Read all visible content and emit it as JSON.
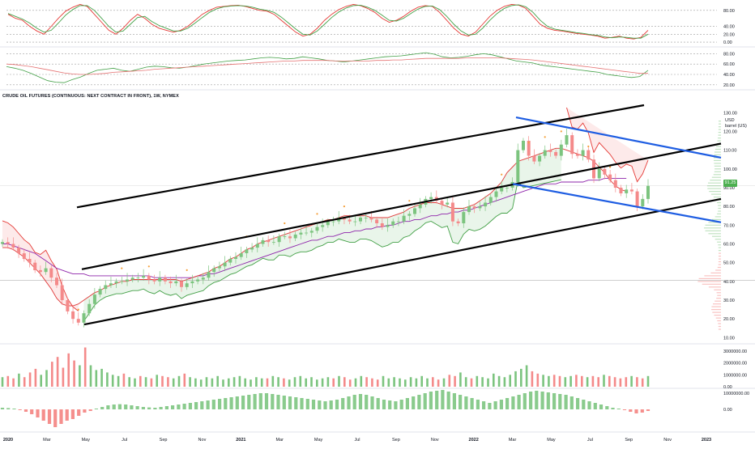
{
  "title": "CRUDE OIL FUTURES (CONTINUOUS: NEXT CONTRACT IN FRONT), 1W, NYMEX",
  "unit_line1": "USD",
  "unit_line2": "barrel (US)",
  "last_price": "91.25",
  "colors": {
    "up": "#7cc47f",
    "down": "#f48a8a",
    "channel": "#000000",
    "wedge": "#1e5de2",
    "ma_fast": "#e03a3a",
    "ma_slow": "#8e24aa",
    "supertrend_up": "#43a047",
    "supertrend_down": "#e53935",
    "dots": "#f5a03a"
  },
  "chart_data": [
    {
      "id": "stochastic",
      "type": "line",
      "ylim": [
        -10,
        100
      ],
      "y_ticks": [
        "80.00",
        "40.00",
        "20.00",
        "0.00"
      ],
      "y_tick_values": [
        80,
        40,
        20,
        0
      ],
      "series": [
        {
          "values": [
            70,
            60,
            55,
            40,
            28,
            20,
            40,
            60,
            78,
            88,
            95,
            90,
            70,
            50,
            30,
            20,
            35,
            55,
            70,
            60,
            45,
            35,
            30,
            25,
            30,
            40,
            55,
            70,
            80,
            88,
            90,
            92,
            93,
            90,
            85,
            80,
            78,
            70,
            55,
            40,
            25,
            15,
            20,
            35,
            55,
            70,
            82,
            90,
            95,
            92,
            85,
            75,
            60,
            50,
            55,
            65,
            78,
            88,
            92,
            90,
            75,
            55,
            35,
            20,
            15,
            25,
            45,
            65,
            80,
            90,
            95,
            93,
            85,
            65,
            45,
            35,
            30,
            28,
            25,
            22,
            20,
            18,
            15,
            10,
            12,
            15,
            10,
            8,
            12,
            30
          ]
        },
        {
          "values": [
            72,
            65,
            58,
            48,
            35,
            25,
            30,
            48,
            68,
            82,
            92,
            92,
            80,
            60,
            40,
            25,
            28,
            45,
            62,
            65,
            52,
            42,
            35,
            28,
            28,
            35,
            48,
            62,
            75,
            84,
            89,
            91,
            92,
            91,
            88,
            83,
            80,
            75,
            63,
            48,
            33,
            20,
            18,
            28,
            45,
            62,
            76,
            86,
            92,
            93,
            88,
            80,
            68,
            55,
            53,
            60,
            72,
            83,
            90,
            91,
            82,
            65,
            45,
            28,
            18,
            20,
            35,
            55,
            72,
            85,
            92,
            94,
            89,
            75,
            55,
            40,
            33,
            30,
            27,
            24,
            22,
            19,
            17,
            13,
            11,
            13,
            12,
            10,
            10,
            20
          ]
        }
      ]
    },
    {
      "id": "rsi",
      "type": "line",
      "ylim": [
        15,
        90
      ],
      "y_ticks": [
        "80.00",
        "60.00",
        "40.00",
        "20.00"
      ],
      "y_tick_values": [
        80,
        60,
        40,
        20
      ],
      "series": [
        {
          "values": [
            55,
            52,
            48,
            42,
            35,
            28,
            25,
            24,
            30,
            35,
            42,
            48,
            50,
            52,
            48,
            46,
            50,
            54,
            56,
            55,
            53,
            52,
            54,
            57,
            60,
            62,
            64,
            66,
            67,
            68,
            70,
            72,
            73,
            72,
            70,
            71,
            74,
            72,
            70,
            67,
            66,
            64,
            66,
            68,
            70,
            72,
            74,
            75,
            76,
            78,
            80,
            82,
            79,
            74,
            72,
            73,
            75,
            78,
            80,
            78,
            74,
            70,
            66,
            64,
            62,
            58,
            56,
            54,
            52,
            50,
            48,
            46,
            44,
            40,
            38,
            36,
            34,
            36,
            48
          ]
        },
        {
          "values": [
            60,
            59,
            57,
            55,
            52,
            49,
            46,
            43,
            41,
            40,
            40,
            41,
            42,
            44,
            45,
            46,
            47,
            48,
            50,
            51,
            52,
            53,
            54,
            55,
            56,
            57,
            58,
            59,
            60,
            61,
            62,
            63,
            64,
            65,
            66,
            66,
            67,
            67,
            67,
            67,
            66,
            66,
            66,
            66,
            66,
            67,
            67,
            68,
            68,
            69,
            70,
            71,
            71,
            71,
            71,
            71,
            72,
            72,
            72,
            72,
            72,
            71,
            70,
            69,
            68,
            66,
            64,
            62,
            60,
            58,
            56,
            54,
            52,
            50,
            48,
            46,
            44,
            42,
            42
          ]
        }
      ]
    },
    {
      "id": "price",
      "type": "candlestick",
      "ylim": [
        8,
        134
      ],
      "y_ticks": [
        "130.00",
        "120.00",
        "110.00",
        "100.00",
        "90.00",
        "80.00",
        "70.00",
        "60.00",
        "50.00",
        "40.00",
        "30.00",
        "20.00",
        "10.00"
      ],
      "y_tick_values": [
        130,
        120,
        110,
        100,
        90,
        80,
        70,
        60,
        50,
        40,
        30,
        20,
        10
      ],
      "x_labels": [
        "2020",
        "Mar",
        "May",
        "Jul",
        "Sep",
        "Nov",
        "2021",
        "Mar",
        "May",
        "Jul",
        "Sep",
        "Nov",
        "2022",
        "Mar",
        "May",
        "Jul",
        "Sep",
        "Nov",
        "2023"
      ],
      "closes": [
        61,
        60,
        58,
        55,
        52,
        50,
        46,
        45,
        47,
        42,
        38,
        30,
        24,
        20,
        18,
        23,
        28,
        33,
        36,
        38,
        39,
        40,
        40,
        41,
        42,
        42,
        43,
        41,
        40,
        42,
        40,
        39,
        40,
        37,
        39,
        40,
        41,
        42,
        45,
        47,
        48,
        50,
        52,
        53,
        55,
        57,
        58,
        60,
        62,
        61,
        61,
        64,
        64,
        63,
        65,
        66,
        66,
        67,
        69,
        70,
        72,
        72,
        74,
        73,
        72,
        72,
        74,
        74,
        73,
        71,
        69,
        70,
        72,
        72,
        75,
        76,
        79,
        81,
        84,
        85,
        83,
        81,
        82,
        72,
        71,
        77,
        80,
        79,
        80,
        82,
        85,
        88,
        90,
        90,
        93,
        110,
        115,
        107,
        104,
        107,
        110,
        109,
        107,
        113,
        118,
        108,
        107,
        110,
        105,
        95,
        100,
        97,
        94,
        90,
        87,
        89,
        88,
        80,
        84,
        91
      ],
      "ma_fast": [
        58,
        58,
        57,
        55,
        53,
        50,
        47,
        44,
        40,
        36,
        31,
        28,
        27,
        27,
        28,
        30,
        32,
        34,
        35,
        37,
        38,
        39,
        40,
        40,
        41,
        41,
        41,
        41,
        41,
        41,
        41,
        41,
        41,
        40,
        41,
        42,
        43,
        44,
        45,
        47,
        48,
        50,
        52,
        53,
        55,
        57,
        58,
        60,
        61,
        62,
        63,
        64,
        65,
        66,
        67,
        68,
        69,
        70,
        71,
        72,
        73,
        73,
        74,
        75,
        75,
        75,
        75,
        75,
        74,
        74,
        74,
        74,
        75,
        76,
        77,
        79,
        80,
        81,
        82,
        82,
        82,
        81,
        80,
        79,
        79,
        79,
        80,
        81,
        83,
        85,
        87,
        90,
        93,
        98,
        101,
        104,
        105,
        106,
        107,
        108,
        109,
        110,
        111,
        111,
        110,
        109,
        108,
        107,
        106,
        104,
        101,
        98,
        94,
        91,
        89,
        88
      ],
      "ma_slow": [
        60,
        60,
        59,
        58,
        57,
        56,
        55,
        53,
        51,
        49,
        47,
        46,
        45,
        44,
        44,
        44,
        43,
        43,
        43,
        43,
        43,
        43,
        43,
        43,
        43,
        43,
        43,
        43,
        42,
        42,
        42,
        42,
        42,
        42,
        42,
        42,
        43,
        43,
        44,
        44,
        45,
        46,
        47,
        48,
        49,
        50,
        51,
        52,
        53,
        54,
        55,
        56,
        57,
        58,
        59,
        60,
        61,
        62,
        62,
        63,
        64,
        64,
        65,
        66,
        66,
        67,
        67,
        68,
        68,
        69,
        69,
        70,
        70,
        71,
        72,
        72,
        73,
        73,
        74,
        75,
        75,
        76,
        76,
        77,
        77,
        78,
        78,
        79,
        80,
        81,
        82,
        83,
        84,
        85,
        86,
        87,
        88,
        89,
        90,
        91,
        92,
        92,
        92,
        93,
        93,
        93,
        93,
        93,
        94,
        94,
        94,
        95,
        95,
        95,
        95,
        95
      ]
    },
    {
      "id": "volume",
      "type": "bar",
      "ylim": [
        0,
        3400000
      ],
      "y_ticks": [
        "3000000.00",
        "2000000.00",
        "1000000.00",
        "0.00"
      ],
      "y_tick_values": [
        3000000,
        2000000,
        1000000,
        0
      ],
      "values": [
        800000,
        900000,
        700000,
        1100000,
        800000,
        1200000,
        1500000,
        1000000,
        1400000,
        2100000,
        2500000,
        1600000,
        2800000,
        2200000,
        1800000,
        3300000,
        1800000,
        1400000,
        1500000,
        1200000,
        1000000,
        900000,
        1100000,
        800000,
        700000,
        900000,
        800000,
        700000,
        1000000,
        900000,
        800000,
        700000,
        900000,
        1100000,
        800000,
        700000,
        600000,
        800000,
        700000,
        900000,
        600000,
        700000,
        800000,
        900000,
        700000,
        600000,
        800000,
        700000,
        700000,
        900000,
        800000,
        700000,
        600000,
        800000,
        900000,
        700000,
        800000,
        600000,
        700000,
        800000,
        700000,
        900000,
        800000,
        600000,
        700000,
        900000,
        800000,
        700000,
        600000,
        900000,
        700000,
        800000,
        700000,
        600000,
        800000,
        700000,
        900000,
        700000,
        800000,
        600000,
        700000,
        1000000,
        900000,
        1200000,
        800000,
        700000,
        900000,
        800000,
        700000,
        1100000,
        900000,
        800000,
        1000000,
        1300000,
        1500000,
        1800000,
        1300000,
        1100000,
        1000000,
        900000,
        1000000,
        900000,
        800000,
        900000,
        1000000,
        900000,
        800000,
        900000,
        800000,
        1000000,
        900000,
        800000,
        700000,
        800000,
        900000,
        800000,
        700000,
        900000
      ],
      "up": [
        1,
        0,
        0,
        1,
        0,
        0,
        0,
        1,
        1,
        0,
        0,
        0,
        0,
        0,
        1,
        0,
        1,
        1,
        1,
        1,
        1,
        1,
        0,
        1,
        1,
        0,
        1,
        0,
        1,
        0,
        0,
        1,
        1,
        0,
        1,
        1,
        1,
        1,
        1,
        1,
        1,
        1,
        1,
        1,
        1,
        1,
        1,
        1,
        0,
        1,
        1,
        0,
        1,
        1,
        1,
        1,
        1,
        1,
        1,
        1,
        0,
        1,
        0,
        0,
        1,
        1,
        0,
        0,
        0,
        1,
        1,
        1,
        1,
        1,
        1,
        1,
        1,
        1,
        0,
        0,
        1,
        0,
        0,
        1,
        1,
        0,
        1,
        1,
        1,
        1,
        1,
        1,
        1,
        1,
        1,
        1,
        0,
        0,
        1,
        1,
        0,
        0,
        1,
        1,
        0,
        0,
        1,
        0,
        0,
        1,
        0,
        0,
        0,
        0,
        1,
        0,
        0,
        1,
        1
      ]
    },
    {
      "id": "oscillator",
      "type": "bar",
      "ylim": [
        -12000000,
        12000000
      ],
      "y_ticks": [
        "10000000.00",
        "0.00"
      ],
      "y_tick_values": [
        10000000,
        0
      ],
      "values": [
        1000000,
        800000,
        500000,
        -500000,
        -1500000,
        -3000000,
        -5000000,
        -7000000,
        -9000000,
        -11000000,
        -9000000,
        -7000000,
        -6000000,
        -4000000,
        -2000000,
        -1000000,
        500000,
        1500000,
        2500000,
        3000000,
        3200000,
        3000000,
        2500000,
        2000000,
        1500000,
        1200000,
        1000000,
        1500000,
        2000000,
        2500000,
        3000000,
        3500000,
        4000000,
        4500000,
        5000000,
        5500000,
        6000000,
        6500000,
        7000000,
        7500000,
        8000000,
        8500000,
        9000000,
        9500000,
        10000000,
        10000000,
        9500000,
        9000000,
        8500000,
        8000000,
        7500000,
        7000000,
        6500000,
        6000000,
        5500000,
        5000000,
        5500000,
        6000000,
        7000000,
        8000000,
        9000000,
        9500000,
        9000000,
        8000000,
        7000000,
        6000000,
        5500000,
        5000000,
        6000000,
        7000000,
        8000000,
        9000000,
        10000000,
        11000000,
        11500000,
        12000000,
        11000000,
        10000000,
        9000000,
        8000000,
        7000000,
        6000000,
        5000000,
        4000000,
        5000000,
        6000000,
        7000000,
        8000000,
        9000000,
        10000000,
        11000000,
        11500000,
        11000000,
        10500000,
        10000000,
        9500000,
        9000000,
        8000000,
        7000000,
        6000000,
        5000000,
        4000000,
        3000000,
        2000000,
        1000000,
        500000,
        -500000,
        -1500000,
        -2500000,
        -2000000,
        -1000000
      ]
    }
  ]
}
